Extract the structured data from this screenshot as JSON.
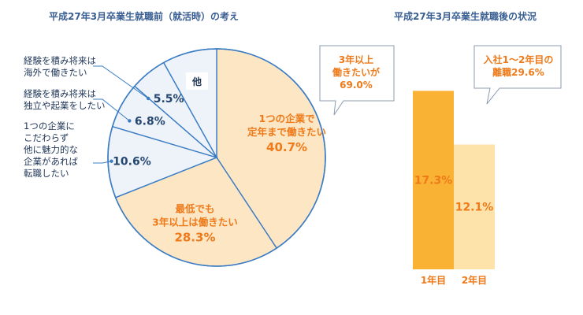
{
  "left_title": "平成27年3月卒業生就職前（就活時）の考え",
  "right_title": "平成27年3月卒業生就職後の状況",
  "left_callout": {
    "lines": [
      "3年以上",
      "働きたいが",
      "69.0%"
    ]
  },
  "right_callout": {
    "lines": [
      "入社1〜2年目の",
      "離職29.6%"
    ]
  },
  "chart_data": [
    {
      "type": "pie",
      "title": "平成27年3月卒業生就職前（就活時）の考え",
      "slices": [
        {
          "label": "1つの企業で定年まで働きたい",
          "value": 40.7,
          "display": "40.7%",
          "color": "#fde6c4"
        },
        {
          "label": "最低でも3年以上は働きたい",
          "value": 28.3,
          "display": "28.3%",
          "color": "#fde6c4"
        },
        {
          "label": "1つの企業にこだわらず他に魅力的な企業があれば転職したい",
          "value": 10.6,
          "display": "10.6%",
          "color": "#eef3fa"
        },
        {
          "label": "経験を積み将来は独立や起業をしたい",
          "value": 6.8,
          "display": "6.8%",
          "color": "#eef3fa"
        },
        {
          "label": "経験を積み将来は海外で働きたい",
          "value": 5.5,
          "display": "5.5%",
          "color": "#eef3fa"
        },
        {
          "label": "他",
          "value": 8.1,
          "display": "他",
          "color": "#eef3fa"
        }
      ],
      "inner_labels": [
        [
          "1つの企業で",
          "定年まで働きたい",
          "40.7%"
        ],
        [
          "最低でも",
          "3年以上は働きたい",
          "28.3%"
        ]
      ],
      "side_labels": [
        [
          "経験を積み将来は",
          "海外で働きたい"
        ],
        [
          "経験を積み将来は",
          "独立や起業をしたい"
        ],
        [
          "1つの企業に",
          "こだわらず",
          "他に魅力的な",
          "企業があれば",
          "転職したい"
        ]
      ],
      "outer_values": [
        "5.5%",
        "6.8%",
        "10.6%"
      ],
      "other_label": "他",
      "colors": {
        "orange_text": "#ee7a1a",
        "blue_text": "#24466f",
        "outline": "#3a7cc4"
      }
    },
    {
      "type": "bar",
      "title": "平成27年3月卒業生就職後の状況",
      "categories": [
        "1年目",
        "2年目"
      ],
      "values": [
        17.3,
        12.1
      ],
      "display": [
        "17.3%",
        "12.1%"
      ],
      "colors": [
        "#f9b233",
        "#fde3aa"
      ]
    }
  ]
}
